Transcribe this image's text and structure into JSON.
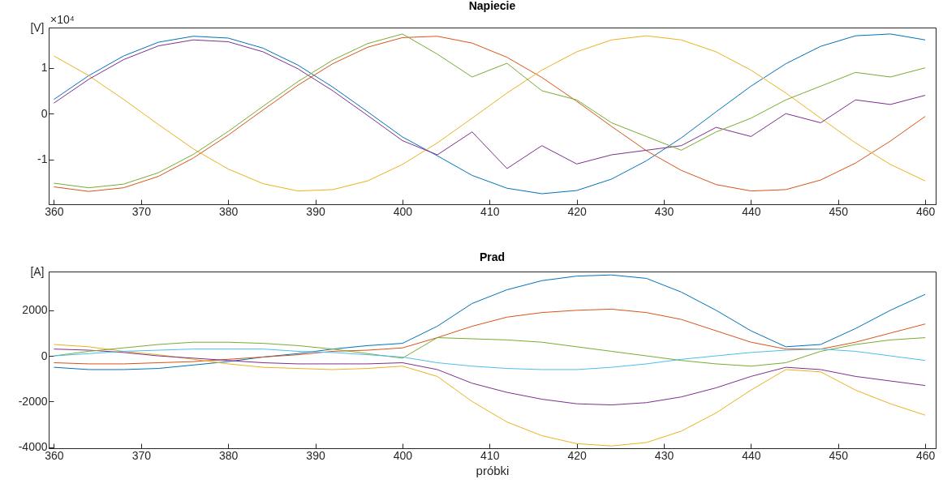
{
  "chart_data": [
    {
      "type": "line",
      "title": "Napiecie",
      "ylabel": "[V]",
      "annotations": [
        "×10⁴"
      ],
      "x": [
        360,
        364,
        368,
        372,
        376,
        380,
        384,
        388,
        392,
        396,
        400,
        404,
        408,
        412,
        416,
        420,
        424,
        428,
        432,
        436,
        440,
        444,
        448,
        452,
        456,
        460
      ],
      "xlim": [
        359.4,
        461.2
      ],
      "xticks": [
        360,
        370,
        380,
        390,
        400,
        410,
        420,
        430,
        440,
        450,
        460
      ],
      "ylim": [
        -1.98,
        1.88
      ],
      "yticks": [
        -1,
        0,
        1
      ],
      "series": [
        {
          "color": "#0072bd",
          "values": [
            0.31,
            0.83,
            1.26,
            1.56,
            1.69,
            1.65,
            1.43,
            1.06,
            0.58,
            0.04,
            -0.51,
            -0.92,
            -1.35,
            -1.63,
            -1.75,
            -1.68,
            -1.43,
            -1.03,
            -0.53,
            0.04,
            0.6,
            1.09,
            1.47,
            1.7,
            1.74,
            1.61
          ]
        },
        {
          "color": "#d95319",
          "values": [
            -1.6,
            -1.7,
            -1.62,
            -1.37,
            -0.97,
            -0.47,
            0.08,
            0.62,
            1.09,
            1.45,
            1.66,
            1.69,
            1.54,
            1.23,
            0.79,
            0.27,
            -0.28,
            -0.81,
            -1.24,
            -1.55,
            -1.69,
            -1.66,
            -1.45,
            -1.08,
            -0.6,
            -0.06
          ]
        },
        {
          "color": "#edb120",
          "values": [
            1.26,
            0.83,
            0.31,
            -0.24,
            -0.77,
            -1.21,
            -1.53,
            -1.69,
            -1.66,
            -1.47,
            -1.11,
            -0.64,
            -0.1,
            0.45,
            0.95,
            1.35,
            1.61,
            1.7,
            1.61,
            1.35,
            0.95,
            0.45,
            -0.1,
            -0.64,
            -1.11,
            -1.47
          ]
        },
        {
          "color": "#7e2f8e",
          "values": [
            0.23,
            0.75,
            1.18,
            1.48,
            1.61,
            1.57,
            1.35,
            0.98,
            0.5,
            -0.04,
            -0.59,
            -0.9,
            -0.4,
            -1.2,
            -0.7,
            -1.1,
            -0.9,
            -0.8,
            -0.7,
            -0.3,
            -0.5,
            0,
            -0.2,
            0.3,
            0.2,
            0.4
          ]
        },
        {
          "color": "#77ac30",
          "values": [
            -1.52,
            -1.62,
            -1.54,
            -1.29,
            -0.89,
            -0.39,
            0.16,
            0.7,
            1.17,
            1.53,
            1.74,
            1.3,
            0.8,
            1.1,
            0.5,
            0.3,
            -0.2,
            -0.5,
            -0.8,
            -0.4,
            -0.1,
            0.3,
            0.6,
            0.9,
            0.8,
            1.0
          ]
        }
      ]
    },
    {
      "type": "line",
      "title": "Prad",
      "ylabel": "[A]",
      "xlabel": "próbki",
      "x": [
        360,
        364,
        368,
        372,
        376,
        380,
        384,
        388,
        392,
        396,
        400,
        404,
        408,
        412,
        416,
        420,
        424,
        428,
        432,
        436,
        440,
        444,
        448,
        452,
        456,
        460
      ],
      "xlim": [
        359.4,
        461.2
      ],
      "xticks": [
        360,
        370,
        380,
        390,
        400,
        410,
        420,
        430,
        440,
        450,
        460
      ],
      "ylim": [
        -4050,
        3700
      ],
      "yticks": [
        -4000,
        -2000,
        0,
        2000
      ],
      "series": [
        {
          "color": "#0072bd",
          "values": [
            -500,
            -600,
            -600,
            -550,
            -400,
            -250,
            -50,
            100,
            300,
            450,
            550,
            1300,
            2300,
            2900,
            3300,
            3500,
            3550,
            3400,
            2800,
            2000,
            1100,
            400,
            500,
            1200,
            2000,
            2700
          ]
        },
        {
          "color": "#d95319",
          "values": [
            -300,
            -350,
            -350,
            -300,
            -250,
            -150,
            -50,
            50,
            200,
            250,
            350,
            800,
            1300,
            1700,
            1900,
            2000,
            2050,
            1900,
            1600,
            1100,
            600,
            300,
            300,
            600,
            1000,
            1400
          ]
        },
        {
          "color": "#edb120",
          "values": [
            500,
            400,
            200,
            50,
            -150,
            -350,
            -500,
            -550,
            -600,
            -550,
            -450,
            -900,
            -2000,
            -2900,
            -3500,
            -3850,
            -3950,
            -3800,
            -3300,
            -2500,
            -1500,
            -600,
            -700,
            -1500,
            -2100,
            -2600
          ]
        },
        {
          "color": "#7e2f8e",
          "values": [
            300,
            250,
            150,
            0,
            -100,
            -200,
            -300,
            -350,
            -350,
            -350,
            -300,
            -600,
            -1200,
            -1600,
            -1900,
            -2100,
            -2150,
            -2050,
            -1800,
            -1400,
            -900,
            -500,
            -600,
            -900,
            -1100,
            -1300
          ]
        },
        {
          "color": "#77ac30",
          "values": [
            0,
            200,
            350,
            500,
            600,
            600,
            550,
            450,
            300,
            100,
            -100,
            800,
            750,
            700,
            600,
            400,
            200,
            0,
            -200,
            -350,
            -450,
            -300,
            200,
            500,
            700,
            800
          ]
        },
        {
          "color": "#4dbeee",
          "values": [
            0,
            100,
            200,
            250,
            300,
            300,
            300,
            200,
            150,
            50,
            -50,
            -300,
            -450,
            -550,
            -600,
            -600,
            -500,
            -350,
            -150,
            0,
            150,
            250,
            300,
            200,
            0,
            -200
          ]
        }
      ]
    }
  ]
}
